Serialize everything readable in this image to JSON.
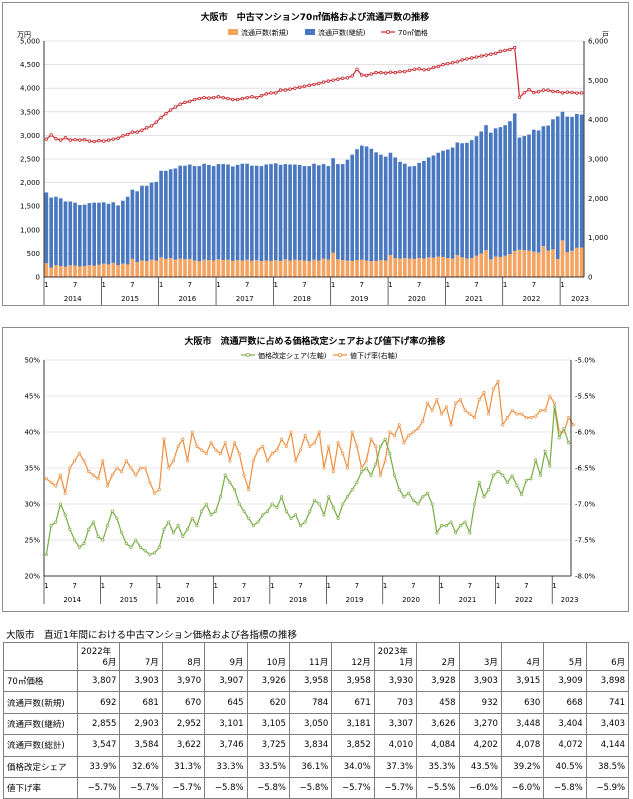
{
  "chart_data": [
    {
      "type": "bar",
      "title": "大阪市　中古マンション70㎡価格および流通戸数の推移",
      "left_unit": "万円",
      "right_unit": "戸",
      "ylim_left": [
        0,
        5000
      ],
      "ylim_right": [
        0,
        6000
      ],
      "left_ticks": [
        "0",
        "500",
        "1,000",
        "1,500",
        "2,000",
        "2,500",
        "3,000",
        "3,500",
        "4,000",
        "4,500",
        "5,000"
      ],
      "right_ticks": [
        "0",
        "1,000",
        "2,000",
        "3,000",
        "4,000",
        "5,000",
        "6,000"
      ],
      "month_ticks": [
        "1",
        "7",
        "1",
        "7",
        "1",
        "7",
        "1",
        "7",
        "1",
        "7",
        "1",
        "7",
        "1",
        "7",
        "1",
        "7",
        "1",
        "7",
        "1",
        "7"
      ],
      "year_labels": [
        "2014",
        "2015",
        "2016",
        "2017",
        "2018",
        "2019",
        "2020",
        "2021",
        "2022",
        "2023"
      ],
      "legend": [
        "流通戸数(新規)",
        "流通戸数(継続)",
        "70㎡価格"
      ],
      "colors": {
        "new": "#f4a460",
        "cont": "#4a78c0",
        "price": "#c8282d"
      },
      "series": [
        {
          "name": "流通戸数(新規)",
          "axis": "right",
          "values": [
            350,
            240,
            300,
            280,
            260,
            300,
            290,
            270,
            280,
            300,
            290,
            310,
            340,
            320,
            360,
            300,
            340,
            320,
            460,
            380,
            420,
            400,
            440,
            420,
            500,
            460,
            480,
            440,
            470,
            450,
            460,
            420,
            400,
            440,
            430,
            420,
            450,
            430,
            440,
            410,
            430,
            420,
            440,
            410,
            430,
            400,
            420,
            410,
            430,
            410,
            450,
            420,
            440,
            430,
            420,
            400,
            440,
            420,
            470,
            440,
            620,
            450,
            430,
            420,
            410,
            430,
            440,
            420,
            400,
            410,
            430,
            420,
            560,
            480,
            470,
            480,
            470,
            460,
            480,
            470,
            500,
            490,
            520,
            510,
            480,
            470,
            560,
            500,
            470,
            480,
            540,
            600,
            680,
            450,
            520,
            510,
            540,
            580,
            660,
            692,
            681,
            670,
            645,
            620,
            784,
            671,
            703,
            458,
            932,
            630,
            668,
            741,
            750
          ]
        },
        {
          "name": "流通戸数(継続)",
          "axis": "right",
          "values": [
            1800,
            1780,
            1740,
            1720,
            1660,
            1620,
            1600,
            1560,
            1560,
            1580,
            1600,
            1580,
            1560,
            1540,
            1540,
            1520,
            1600,
            1720,
            1760,
            1800,
            1900,
            1920,
            1960,
            2000,
            2200,
            2240,
            2260,
            2320,
            2360,
            2380,
            2400,
            2400,
            2420,
            2440,
            2420,
            2400,
            2420,
            2440,
            2420,
            2400,
            2420,
            2460,
            2440,
            2420,
            2400,
            2420,
            2440,
            2460,
            2460,
            2440,
            2420,
            2440,
            2420,
            2420,
            2400,
            2420,
            2440,
            2420,
            2400,
            2380,
            2400,
            2420,
            2440,
            2560,
            2700,
            2820,
            2900,
            2900,
            2860,
            2760,
            2680,
            2640,
            2600,
            2560,
            2460,
            2400,
            2340,
            2360,
            2420,
            2480,
            2540,
            2600,
            2640,
            2700,
            2760,
            2820,
            2860,
            2900,
            2940,
            3000,
            3040,
            3100,
            3180,
            3220,
            3260,
            3300,
            3320,
            3380,
            3500,
            2855,
            2903,
            2952,
            3101,
            3105,
            3050,
            3181,
            3307,
            3626,
            3270,
            3448,
            3404,
            3403,
            3380
          ]
        },
        {
          "name": "70㎡価格",
          "axis": "left",
          "values": [
            2920,
            3010,
            2930,
            2900,
            2950,
            2900,
            2910,
            2900,
            2910,
            2880,
            2870,
            2890,
            2880,
            2900,
            2920,
            2940,
            2990,
            3020,
            3070,
            3070,
            3110,
            3160,
            3200,
            3280,
            3380,
            3460,
            3540,
            3600,
            3660,
            3700,
            3720,
            3760,
            3780,
            3800,
            3790,
            3800,
            3820,
            3800,
            3780,
            3760,
            3760,
            3780,
            3800,
            3820,
            3800,
            3840,
            3880,
            3900,
            3900,
            3960,
            3960,
            3980,
            4000,
            4020,
            4040,
            4060,
            4080,
            4100,
            4130,
            4150,
            4170,
            4190,
            4210,
            4220,
            4260,
            4400,
            4280,
            4270,
            4300,
            4330,
            4330,
            4320,
            4340,
            4330,
            4350,
            4350,
            4380,
            4400,
            4410,
            4390,
            4400,
            4440,
            4460,
            4500,
            4520,
            4540,
            4560,
            4600,
            4620,
            4640,
            4660,
            4680,
            4700,
            4720,
            4740,
            4780,
            4800,
            4820,
            4860,
            3807,
            3903,
            3970,
            3907,
            3926,
            3958,
            3958,
            3930,
            3928,
            3903,
            3915,
            3909,
            3898,
            3900
          ]
        }
      ]
    },
    {
      "type": "line",
      "title": "大阪市　流通戸数に占める価格改定シェアおよび値下げ率の推移",
      "legend": [
        "価格改定シェア(左軸)",
        "値下げ率(右軸)"
      ],
      "colors": {
        "share": "#77ac42",
        "cut": "#f08c3c"
      },
      "ylim_left": [
        0.2,
        0.5
      ],
      "ylim_right": [
        -0.08,
        -0.05
      ],
      "left_ticks": [
        "20%",
        "25%",
        "30%",
        "35%",
        "40%",
        "45%",
        "50%"
      ],
      "right_ticks": [
        "-8.0%",
        "-7.5%",
        "-7.0%",
        "-6.5%",
        "-6.0%",
        "-5.5%",
        "-5.0%"
      ],
      "month_ticks": [
        "1",
        "7",
        "1",
        "7",
        "1",
        "7",
        "1",
        "7",
        "1",
        "7",
        "1",
        "7",
        "1",
        "7",
        "1",
        "7",
        "1",
        "7",
        "1",
        "7"
      ],
      "year_labels": [
        "2014",
        "2015",
        "2016",
        "2017",
        "2018",
        "2019",
        "2020",
        "2021",
        "2022",
        "2023"
      ],
      "series": [
        {
          "name": "価格改定シェア(左軸)",
          "axis": "left",
          "values": [
            0.23,
            0.27,
            0.275,
            0.3,
            0.285,
            0.265,
            0.25,
            0.24,
            0.245,
            0.265,
            0.275,
            0.255,
            0.25,
            0.27,
            0.29,
            0.28,
            0.26,
            0.245,
            0.24,
            0.25,
            0.24,
            0.235,
            0.23,
            0.232,
            0.24,
            0.265,
            0.275,
            0.26,
            0.27,
            0.255,
            0.265,
            0.28,
            0.27,
            0.29,
            0.3,
            0.285,
            0.29,
            0.31,
            0.34,
            0.33,
            0.32,
            0.3,
            0.29,
            0.28,
            0.27,
            0.275,
            0.285,
            0.29,
            0.3,
            0.295,
            0.31,
            0.29,
            0.28,
            0.285,
            0.27,
            0.275,
            0.29,
            0.305,
            0.3,
            0.285,
            0.31,
            0.295,
            0.28,
            0.3,
            0.31,
            0.32,
            0.33,
            0.345,
            0.35,
            0.34,
            0.355,
            0.38,
            0.39,
            0.37,
            0.34,
            0.32,
            0.31,
            0.315,
            0.305,
            0.3,
            0.31,
            0.315,
            0.3,
            0.26,
            0.27,
            0.27,
            0.275,
            0.26,
            0.27,
            0.275,
            0.26,
            0.3,
            0.33,
            0.31,
            0.32,
            0.34,
            0.345,
            0.34,
            0.33,
            0.339,
            0.326,
            0.313,
            0.333,
            0.335,
            0.361,
            0.34,
            0.373,
            0.353,
            0.435,
            0.392,
            0.405,
            0.385
          ]
        },
        {
          "name": "値下げ率(右軸)",
          "axis": "right",
          "values": [
            -0.0665,
            -0.067,
            -0.0675,
            -0.066,
            -0.0685,
            -0.065,
            -0.064,
            -0.063,
            -0.064,
            -0.0655,
            -0.066,
            -0.0665,
            -0.064,
            -0.0675,
            -0.066,
            -0.065,
            -0.0655,
            -0.064,
            -0.065,
            -0.066,
            -0.065,
            -0.065,
            -0.067,
            -0.0685,
            -0.068,
            -0.061,
            -0.065,
            -0.064,
            -0.062,
            -0.061,
            -0.064,
            -0.06,
            -0.062,
            -0.0625,
            -0.063,
            -0.0615,
            -0.0625,
            -0.063,
            -0.0615,
            -0.064,
            -0.0615,
            -0.063,
            -0.066,
            -0.068,
            -0.064,
            -0.0625,
            -0.062,
            -0.064,
            -0.063,
            -0.0625,
            -0.061,
            -0.062,
            -0.06,
            -0.064,
            -0.0625,
            -0.0605,
            -0.062,
            -0.0615,
            -0.06,
            -0.065,
            -0.062,
            -0.0655,
            -0.0615,
            -0.063,
            -0.065,
            -0.06,
            -0.062,
            -0.065,
            -0.064,
            -0.061,
            -0.062,
            -0.066,
            -0.064,
            -0.06,
            -0.0605,
            -0.059,
            -0.0615,
            -0.0605,
            -0.06,
            -0.0595,
            -0.0585,
            -0.056,
            -0.057,
            -0.0555,
            -0.0575,
            -0.0565,
            -0.059,
            -0.056,
            -0.0555,
            -0.057,
            -0.0575,
            -0.058,
            -0.0555,
            -0.0545,
            -0.0575,
            -0.054,
            -0.053,
            -0.059,
            -0.058,
            -0.057,
            -0.0575,
            -0.0575,
            -0.058,
            -0.058,
            -0.0578,
            -0.057,
            -0.057,
            -0.055,
            -0.056,
            -0.06,
            -0.06,
            -0.058,
            -0.059
          ]
        }
      ]
    },
    {
      "type": "table",
      "title": "大阪市　直近1年間における中古マンション価格および各指標の推移",
      "year_labels": {
        "c0": "2022年",
        "c7": "2023年"
      },
      "columns": [
        "6月",
        "7月",
        "8月",
        "9月",
        "10月",
        "11月",
        "12月",
        "1月",
        "2月",
        "3月",
        "4月",
        "5月",
        "6月"
      ],
      "rows": [
        {
          "label": "70㎡価格",
          "values": [
            "3,807",
            "3,903",
            "3,970",
            "3,907",
            "3,926",
            "3,958",
            "3,958",
            "3,930",
            "3,928",
            "3,903",
            "3,915",
            "3,909",
            "3,898"
          ]
        },
        {
          "label": "流通戸数(新規)",
          "values": [
            "692",
            "681",
            "670",
            "645",
            "620",
            "784",
            "671",
            "703",
            "458",
            "932",
            "630",
            "668",
            "741"
          ]
        },
        {
          "label": "流通戸数(継続)",
          "values": [
            "2,855",
            "2,903",
            "2,952",
            "3,101",
            "3,105",
            "3,050",
            "3,181",
            "3,307",
            "3,626",
            "3,270",
            "3,448",
            "3,404",
            "3,403"
          ]
        },
        {
          "label": "流通戸数(総計)",
          "values": [
            "3,547",
            "3,584",
            "3,622",
            "3,746",
            "3,725",
            "3,834",
            "3,852",
            "4,010",
            "4,084",
            "4,202",
            "4,078",
            "4,072",
            "4,144"
          ]
        },
        {
          "label": "価格改定シェア",
          "values": [
            "33.9%",
            "32.6%",
            "31.3%",
            "33.3%",
            "33.5%",
            "36.1%",
            "34.0%",
            "37.3%",
            "35.3%",
            "43.5%",
            "39.2%",
            "40.5%",
            "38.5%"
          ]
        },
        {
          "label": "値下げ率",
          "values": [
            "−5.7%",
            "−5.7%",
            "−5.7%",
            "−5.8%",
            "−5.8%",
            "−5.8%",
            "−5.7%",
            "−5.7%",
            "−5.5%",
            "−6.0%",
            "−6.0%",
            "−5.8%",
            "−5.9%"
          ]
        }
      ]
    }
  ]
}
